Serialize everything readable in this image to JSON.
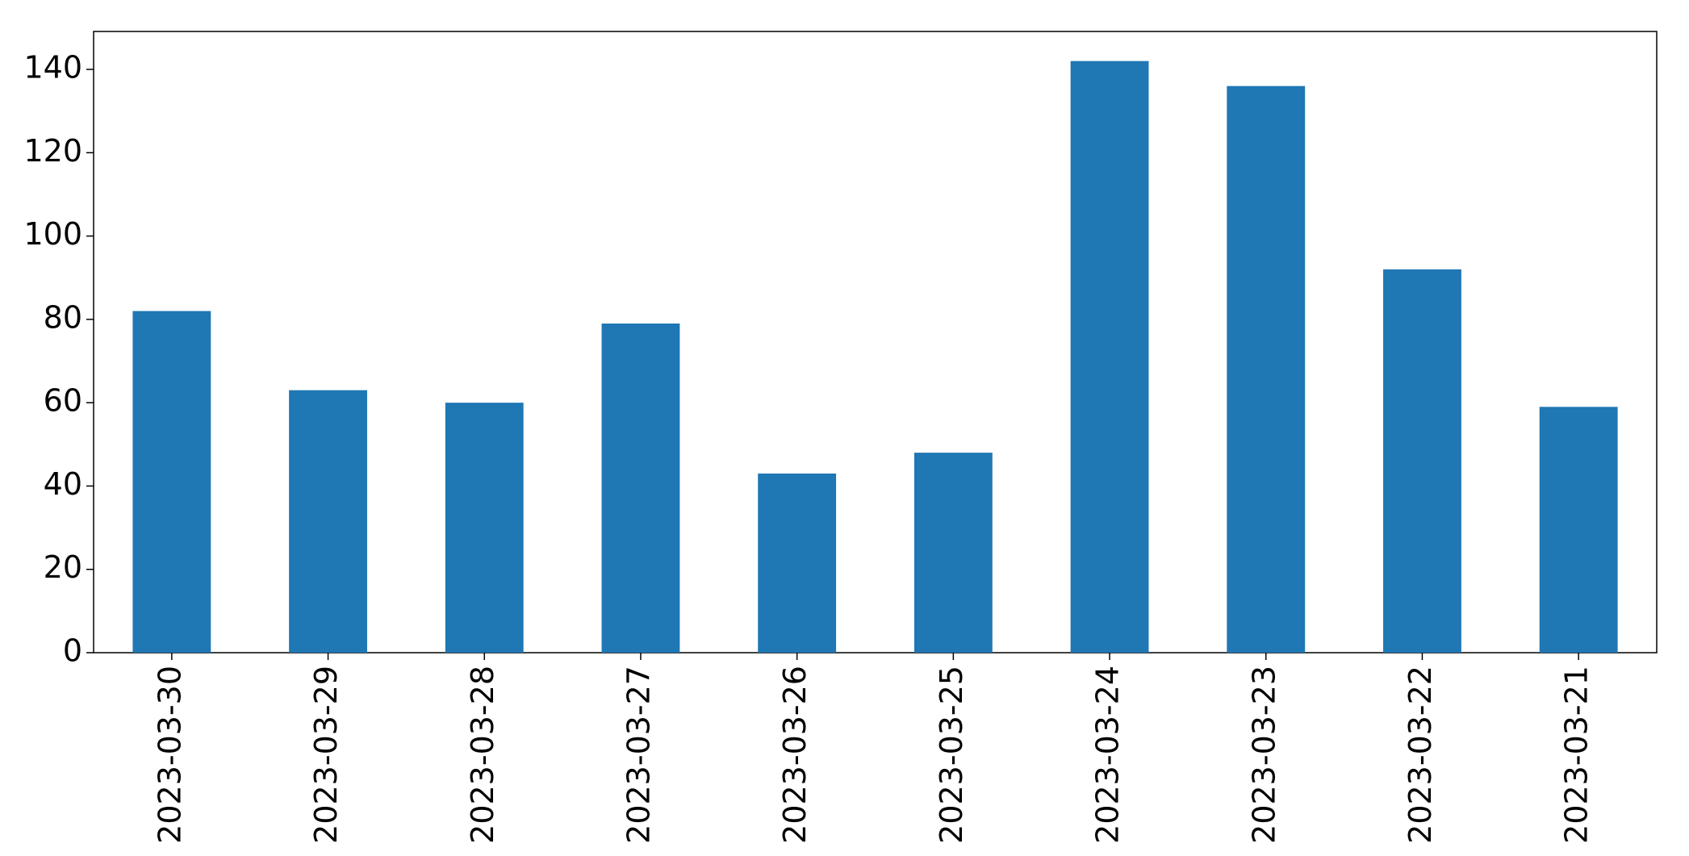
{
  "chart_data": {
    "type": "bar",
    "categories": [
      "2023-03-30",
      "2023-03-29",
      "2023-03-28",
      "2023-03-27",
      "2023-03-26",
      "2023-03-25",
      "2023-03-24",
      "2023-03-23",
      "2023-03-22",
      "2023-03-21"
    ],
    "values": [
      82,
      63,
      60,
      79,
      43,
      48,
      142,
      136,
      92,
      59
    ],
    "color": "#1f77b4",
    "ylim": [
      0,
      149.1
    ],
    "yticks": [
      0,
      20,
      40,
      60,
      80,
      100,
      120,
      140
    ],
    "grid": false
  }
}
